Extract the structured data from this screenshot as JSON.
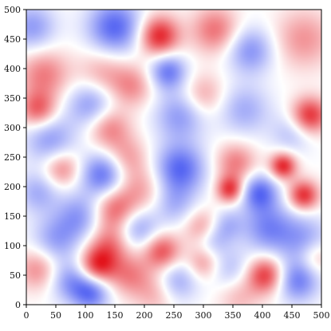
{
  "chart_data": {
    "type": "heatmap",
    "title": "",
    "xlabel": "",
    "ylabel": "",
    "xlim": [
      0,
      500
    ],
    "ylim": [
      0,
      500
    ],
    "x_ticks": [
      0,
      50,
      100,
      150,
      200,
      250,
      300,
      350,
      400,
      450,
      500
    ],
    "y_ticks": [
      0,
      50,
      100,
      150,
      200,
      250,
      300,
      350,
      400,
      450,
      500
    ],
    "x_tick_labels": [
      "0",
      "50",
      "100",
      "150",
      "200",
      "250",
      "300",
      "350",
      "400",
      "450",
      "500"
    ],
    "y_tick_labels": [
      "0",
      "50",
      "100",
      "150",
      "200",
      "250",
      "300",
      "350",
      "400",
      "450",
      "500"
    ],
    "colormap": "bwr",
    "colors": {
      "low": "#3a4cf0",
      "mid": "#ffffff",
      "high": "#e3141c"
    },
    "value_range": [
      -1,
      1
    ],
    "grid": false,
    "colorbar": false,
    "features": [
      {
        "x": 150,
        "y": 470,
        "value": -0.85,
        "sigma": 32
      },
      {
        "x": 225,
        "y": 455,
        "value": 0.95,
        "sigma": 24
      },
      {
        "x": 320,
        "y": 465,
        "value": 0.6,
        "sigma": 28
      },
      {
        "x": 10,
        "y": 470,
        "value": -0.55,
        "sigma": 28
      },
      {
        "x": 30,
        "y": 390,
        "value": 0.55,
        "sigma": 30
      },
      {
        "x": 20,
        "y": 330,
        "value": 0.7,
        "sigma": 22
      },
      {
        "x": 240,
        "y": 395,
        "value": -0.75,
        "sigma": 22
      },
      {
        "x": 380,
        "y": 430,
        "value": -0.6,
        "sigma": 28
      },
      {
        "x": 470,
        "y": 450,
        "value": 0.45,
        "sigma": 35
      },
      {
        "x": 130,
        "y": 390,
        "value": 0.4,
        "sigma": 30
      },
      {
        "x": 180,
        "y": 370,
        "value": 0.45,
        "sigma": 25
      },
      {
        "x": 300,
        "y": 355,
        "value": 0.4,
        "sigma": 25
      },
      {
        "x": 110,
        "y": 340,
        "value": -0.6,
        "sigma": 28
      },
      {
        "x": 260,
        "y": 320,
        "value": -0.55,
        "sigma": 30
      },
      {
        "x": 370,
        "y": 330,
        "value": -0.45,
        "sigma": 30
      },
      {
        "x": 140,
        "y": 300,
        "value": 0.55,
        "sigma": 25
      },
      {
        "x": 480,
        "y": 320,
        "value": 0.9,
        "sigma": 22
      },
      {
        "x": 450,
        "y": 290,
        "value": -0.35,
        "sigma": 25
      },
      {
        "x": 40,
        "y": 280,
        "value": -0.55,
        "sigma": 30
      },
      {
        "x": 60,
        "y": 230,
        "value": 0.55,
        "sigma": 22
      },
      {
        "x": 130,
        "y": 220,
        "value": -0.8,
        "sigma": 26
      },
      {
        "x": 170,
        "y": 250,
        "value": 0.4,
        "sigma": 25
      },
      {
        "x": 260,
        "y": 230,
        "value": -0.85,
        "sigma": 30
      },
      {
        "x": 355,
        "y": 240,
        "value": 0.55,
        "sigma": 24
      },
      {
        "x": 435,
        "y": 235,
        "value": 0.95,
        "sigma": 16
      },
      {
        "x": 345,
        "y": 195,
        "value": 0.85,
        "sigma": 16
      },
      {
        "x": 395,
        "y": 190,
        "value": -0.8,
        "sigma": 22
      },
      {
        "x": 470,
        "y": 185,
        "value": 0.9,
        "sigma": 18
      },
      {
        "x": 195,
        "y": 195,
        "value": 0.4,
        "sigma": 30
      },
      {
        "x": 20,
        "y": 190,
        "value": -0.45,
        "sigma": 25
      },
      {
        "x": 90,
        "y": 150,
        "value": -0.55,
        "sigma": 28
      },
      {
        "x": 150,
        "y": 160,
        "value": 0.65,
        "sigma": 26
      },
      {
        "x": 140,
        "y": 100,
        "value": 0.55,
        "sigma": 25
      },
      {
        "x": 190,
        "y": 130,
        "value": -0.55,
        "sigma": 25
      },
      {
        "x": 250,
        "y": 170,
        "value": -0.4,
        "sigma": 25
      },
      {
        "x": 300,
        "y": 130,
        "value": 0.5,
        "sigma": 22
      },
      {
        "x": 340,
        "y": 135,
        "value": -0.4,
        "sigma": 20
      },
      {
        "x": 410,
        "y": 130,
        "value": -0.65,
        "sigma": 30
      },
      {
        "x": 470,
        "y": 110,
        "value": -0.5,
        "sigma": 30
      },
      {
        "x": 50,
        "y": 110,
        "value": -0.5,
        "sigma": 28
      },
      {
        "x": 20,
        "y": 60,
        "value": 0.5,
        "sigma": 25
      },
      {
        "x": 75,
        "y": 40,
        "value": -0.55,
        "sigma": 25
      },
      {
        "x": 120,
        "y": 65,
        "value": 0.85,
        "sigma": 22
      },
      {
        "x": 110,
        "y": 20,
        "value": -0.75,
        "sigma": 22
      },
      {
        "x": 175,
        "y": 50,
        "value": 0.5,
        "sigma": 25
      },
      {
        "x": 230,
        "y": 90,
        "value": 0.75,
        "sigma": 22
      },
      {
        "x": 255,
        "y": 40,
        "value": -0.5,
        "sigma": 25
      },
      {
        "x": 300,
        "y": 70,
        "value": 0.45,
        "sigma": 20
      },
      {
        "x": 315,
        "y": 110,
        "value": -0.4,
        "sigma": 20
      },
      {
        "x": 345,
        "y": 60,
        "value": -0.35,
        "sigma": 25
      },
      {
        "x": 405,
        "y": 50,
        "value": 0.85,
        "sigma": 22
      },
      {
        "x": 460,
        "y": 40,
        "value": -0.7,
        "sigma": 25
      },
      {
        "x": 220,
        "y": 20,
        "value": 0.35,
        "sigma": 25
      },
      {
        "x": 360,
        "y": 15,
        "value": 0.3,
        "sigma": 25
      },
      {
        "x": 490,
        "y": 80,
        "value": 0.4,
        "sigma": 20
      }
    ]
  }
}
